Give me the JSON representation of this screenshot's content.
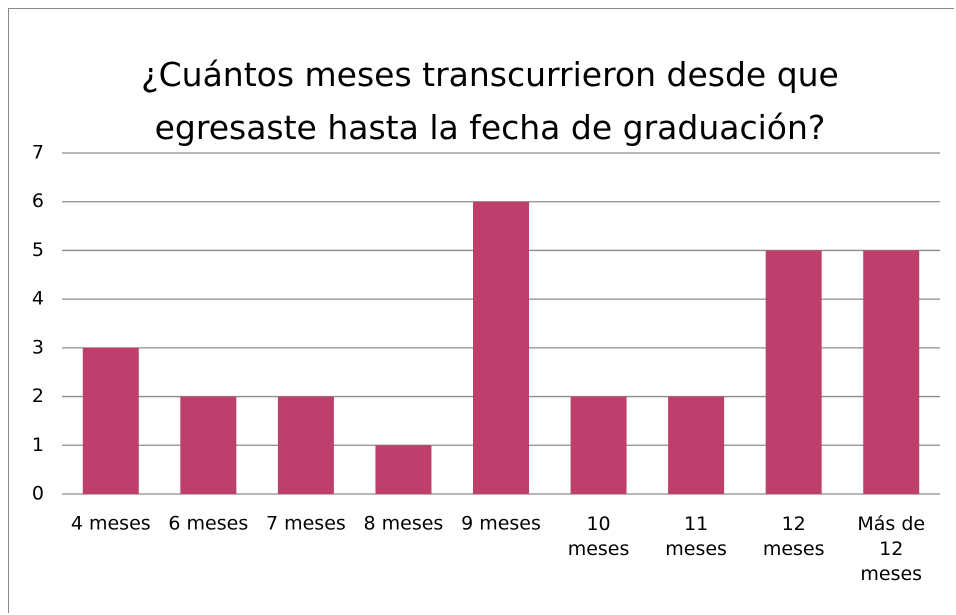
{
  "chart_data": {
    "type": "bar",
    "title": "¿Cuántos meses transcurrieron desde que egresaste hasta la fecha de graduación?",
    "categories": [
      "4 meses",
      "6 meses",
      "7 meses",
      "8 meses",
      "9 meses",
      "10 meses",
      "11 meses",
      "12 meses",
      "Más de 12 meses"
    ],
    "values": [
      3,
      2,
      2,
      1,
      6,
      2,
      2,
      5,
      5
    ],
    "color": "#be3f6b",
    "ylim": [
      0,
      7
    ],
    "yticks": [
      0,
      1,
      2,
      3,
      4,
      5,
      6,
      7
    ],
    "grid": true
  }
}
